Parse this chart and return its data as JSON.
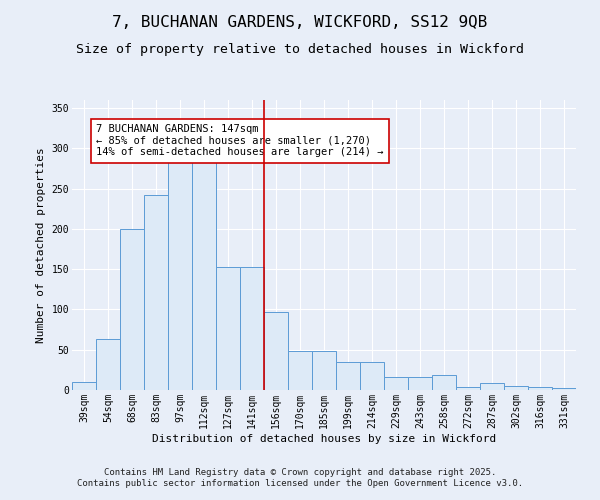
{
  "title": "7, BUCHANAN GARDENS, WICKFORD, SS12 9QB",
  "subtitle": "Size of property relative to detached houses in Wickford",
  "xlabel": "Distribution of detached houses by size in Wickford",
  "ylabel": "Number of detached properties",
  "categories": [
    "39sqm",
    "54sqm",
    "68sqm",
    "83sqm",
    "97sqm",
    "112sqm",
    "127sqm",
    "141sqm",
    "156sqm",
    "170sqm",
    "185sqm",
    "199sqm",
    "214sqm",
    "229sqm",
    "243sqm",
    "258sqm",
    "272sqm",
    "287sqm",
    "302sqm",
    "316sqm",
    "331sqm"
  ],
  "values": [
    10,
    63,
    200,
    242,
    283,
    293,
    153,
    153,
    97,
    48,
    48,
    35,
    35,
    16,
    16,
    19,
    4,
    9,
    5,
    4,
    3
  ],
  "bar_color": "#ddeaf7",
  "bar_edge_color": "#5b9bd5",
  "vline_color": "#cc0000",
  "annotation_title": "7 BUCHANAN GARDENS: 147sqm",
  "annotation_line1": "← 85% of detached houses are smaller (1,270)",
  "annotation_line2": "14% of semi-detached houses are larger (214) →",
  "annotation_box_color": "#ffffff",
  "annotation_box_edge": "#cc0000",
  "ylim": [
    0,
    360
  ],
  "yticks": [
    0,
    50,
    100,
    150,
    200,
    250,
    300,
    350
  ],
  "background_color": "#e8eef8",
  "grid_color": "#ffffff",
  "footer": "Contains HM Land Registry data © Crown copyright and database right 2025.\nContains public sector information licensed under the Open Government Licence v3.0.",
  "title_fontsize": 11.5,
  "subtitle_fontsize": 9.5,
  "label_fontsize": 8,
  "tick_fontsize": 7,
  "annotation_fontsize": 7.5
}
